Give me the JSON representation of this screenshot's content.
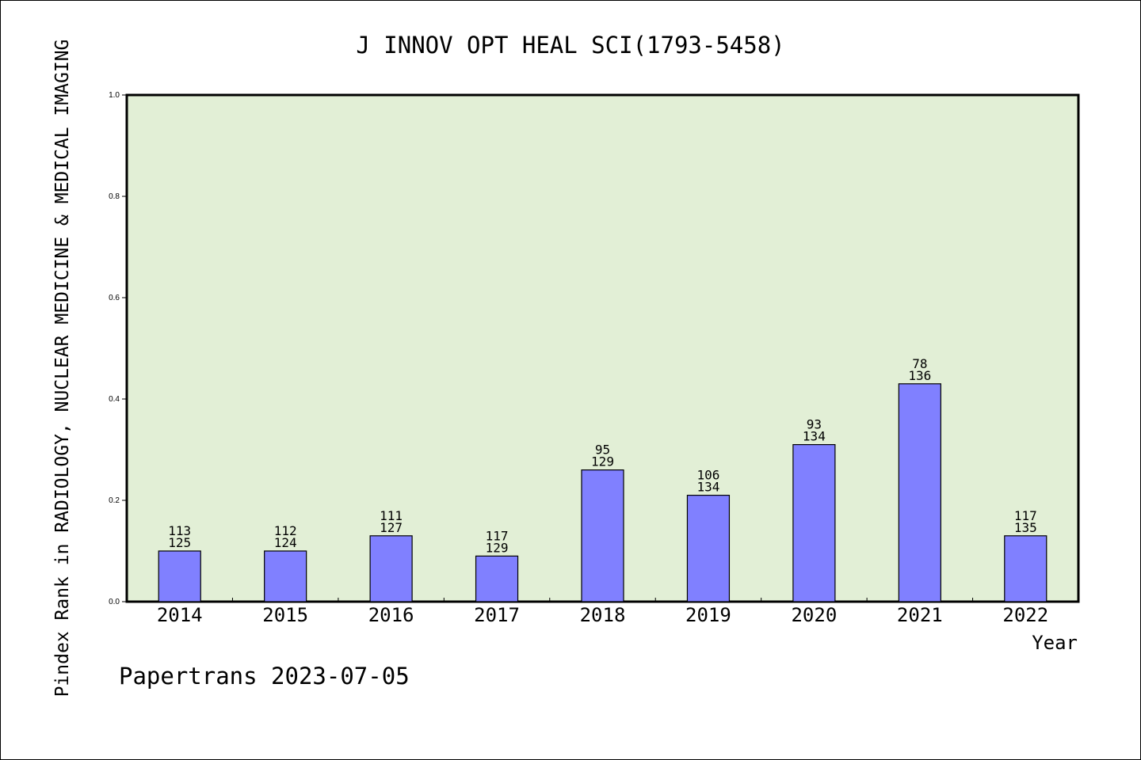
{
  "chart_data": {
    "type": "bar",
    "title": "J INNOV OPT HEAL SCI(1793-5458)",
    "xlabel": "Year",
    "ylabel": "Pindex Rank in RADIOLOGY, NUCLEAR MEDICINE & MEDICAL IMAGING",
    "ylim": [
      0,
      1.0
    ],
    "yticks": [
      "0.0",
      "0.2",
      "0.4",
      "0.6",
      "0.8",
      "1.0"
    ],
    "categories": [
      "2014",
      "2015",
      "2016",
      "2017",
      "2018",
      "2019",
      "2020",
      "2021",
      "2022"
    ],
    "values": [
      0.1,
      0.1,
      0.13,
      0.09,
      0.26,
      0.21,
      0.31,
      0.43,
      0.13
    ],
    "labels": [
      [
        "113",
        "125"
      ],
      [
        "112",
        "124"
      ],
      [
        "111",
        "127"
      ],
      [
        "117",
        "129"
      ],
      [
        "95",
        "129"
      ],
      [
        "106",
        "134"
      ],
      [
        "93",
        "134"
      ],
      [
        "78",
        "136"
      ],
      [
        "117",
        "135"
      ]
    ],
    "bar_color": "#8080ff",
    "plot_bg": "#e2efd6",
    "grid": false,
    "footer": "Papertrans 2023-07-05"
  }
}
